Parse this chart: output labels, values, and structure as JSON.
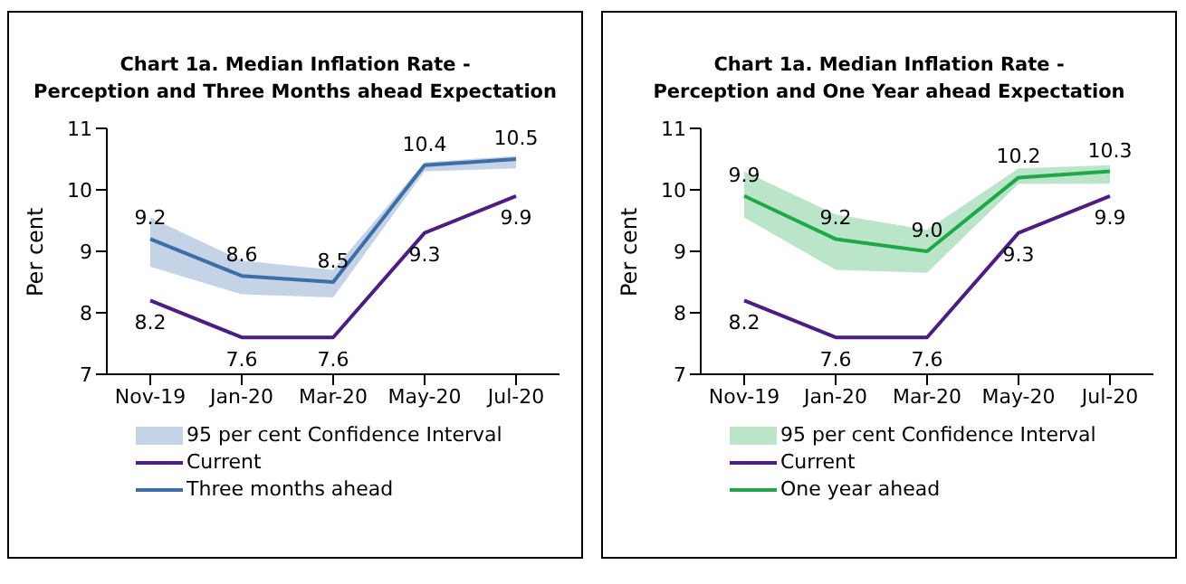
{
  "chart_data": [
    {
      "type": "line",
      "title": "Chart 1a. Median Inflation Rate -\nPerception and Three Months ahead Expectation",
      "ylabel": "Per cent",
      "categories": [
        "Nov-19",
        "Jan-20",
        "Mar-20",
        "May-20",
        "Jul-20"
      ],
      "ylim": [
        7,
        11
      ],
      "yticks": [
        7,
        8,
        9,
        10,
        11
      ],
      "legend": "bottom",
      "data_labels": true,
      "annotations": [
        "95 per cent Confidence Interval"
      ],
      "series": [
        {
          "name": "Current",
          "color": "#4b1f7f",
          "values": [
            8.2,
            7.6,
            7.6,
            9.3,
            9.9
          ]
        },
        {
          "name": "Three months ahead",
          "color": "#3d6ea8",
          "values": [
            9.2,
            8.6,
            8.5,
            10.4,
            10.5
          ],
          "lower": [
            8.75,
            8.3,
            8.25,
            10.3,
            10.35
          ],
          "upper": [
            9.55,
            8.85,
            8.7,
            10.45,
            10.55
          ]
        }
      ]
    },
    {
      "type": "line",
      "title": "Chart 1a. Median Inflation Rate -\nPerception and One Year ahead Expectation",
      "ylabel": "Per cent",
      "categories": [
        "Nov-19",
        "Jan-20",
        "Mar-20",
        "May-20",
        "Jul-20"
      ],
      "ylim": [
        7,
        11
      ],
      "yticks": [
        7,
        8,
        9,
        10,
        11
      ],
      "legend": "bottom",
      "data_labels": true,
      "annotations": [
        "95 per cent Confidence Interval"
      ],
      "series": [
        {
          "name": "Current",
          "color": "#4b1f7f",
          "values": [
            8.2,
            7.6,
            7.6,
            9.3,
            9.9
          ]
        },
        {
          "name": "One year ahead",
          "color": "#1fa84a",
          "values": [
            9.9,
            9.2,
            9.0,
            10.2,
            10.3
          ],
          "value_labels": [
            "9.9",
            "9.2",
            "9.0",
            "10.2",
            "10.3"
          ],
          "lower": [
            9.55,
            8.7,
            8.65,
            10.1,
            10.1
          ],
          "upper": [
            10.3,
            9.6,
            9.35,
            10.35,
            10.4
          ]
        }
      ]
    }
  ]
}
